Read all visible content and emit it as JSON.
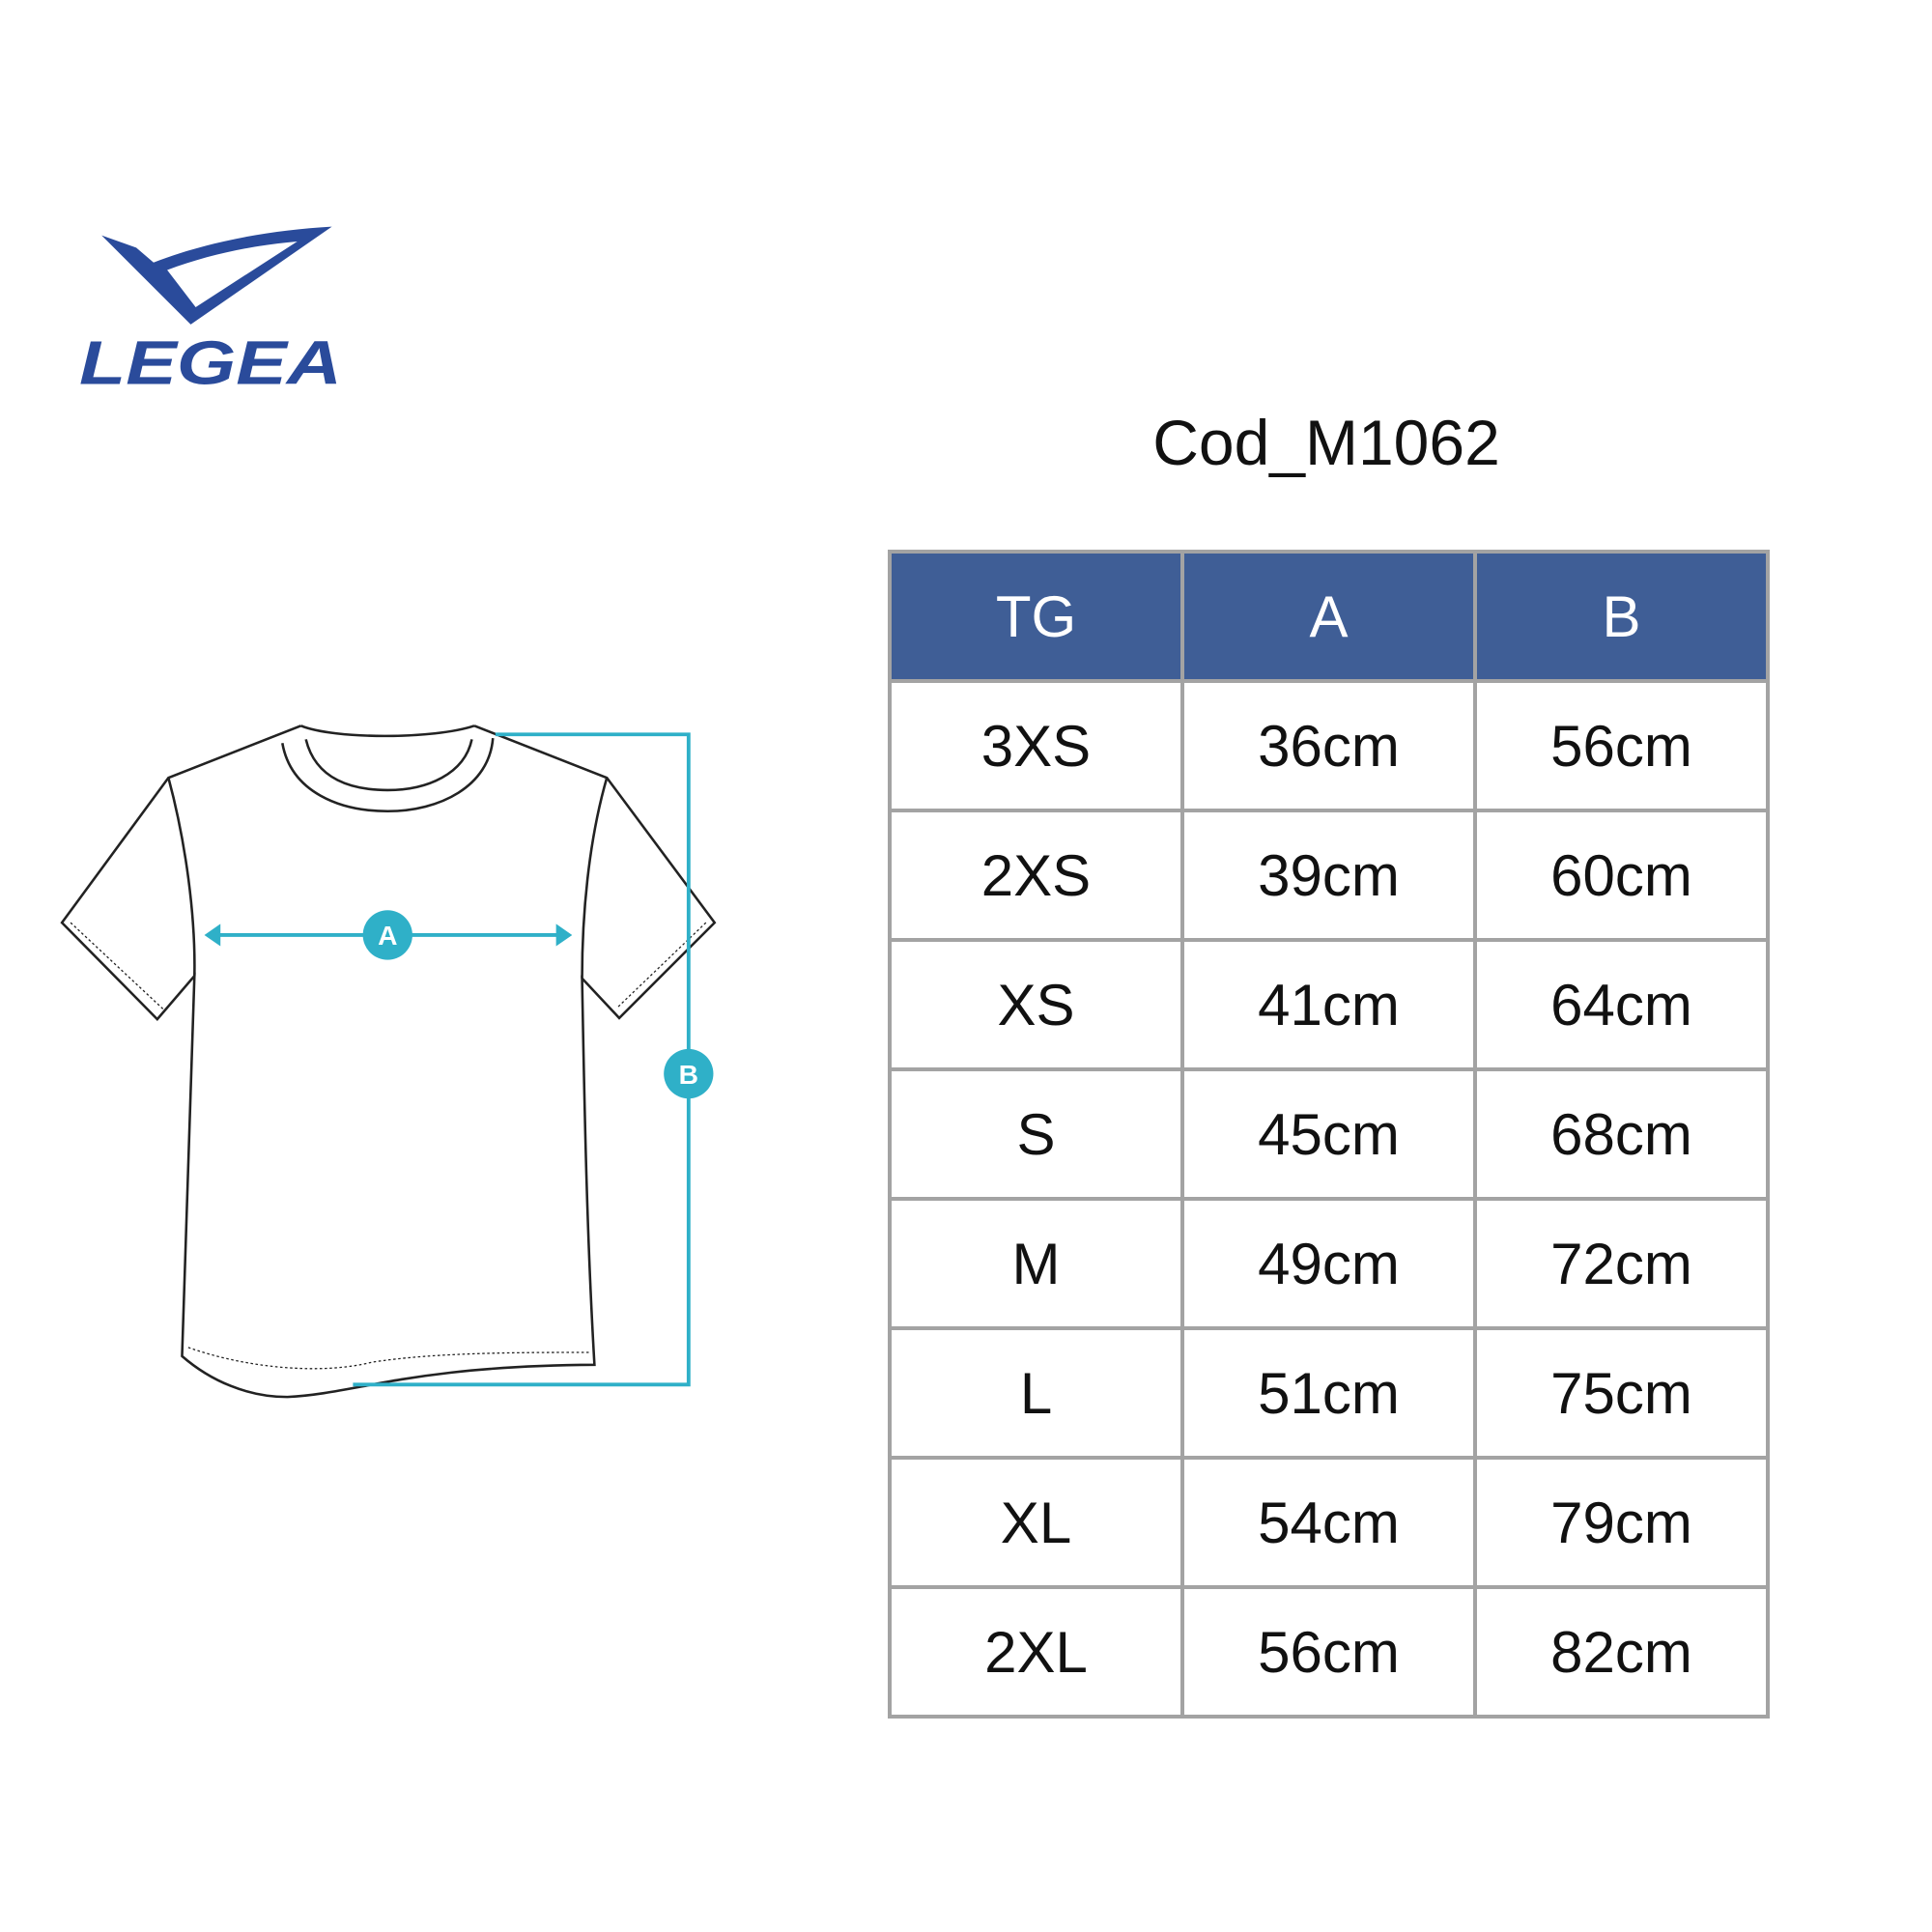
{
  "logo": {
    "text": "LEGEA",
    "color": "#2a4b9b"
  },
  "title": "Cod_M1062",
  "diagram": {
    "label_a": "A",
    "label_b": "B",
    "accent": "#2fb0c8"
  },
  "table": {
    "header_color": "#3f5e96",
    "headers": [
      "TG",
      "A",
      "B"
    ],
    "rows": [
      [
        "3XS",
        "36cm",
        "56cm"
      ],
      [
        "2XS",
        "39cm",
        "60cm"
      ],
      [
        "XS",
        "41cm",
        "64cm"
      ],
      [
        "S",
        "45cm",
        "68cm"
      ],
      [
        "M",
        "49cm",
        "72cm"
      ],
      [
        "L",
        "51cm",
        "75cm"
      ],
      [
        "XL",
        "54cm",
        "79cm"
      ],
      [
        "2XL",
        "56cm",
        "82cm"
      ]
    ]
  }
}
